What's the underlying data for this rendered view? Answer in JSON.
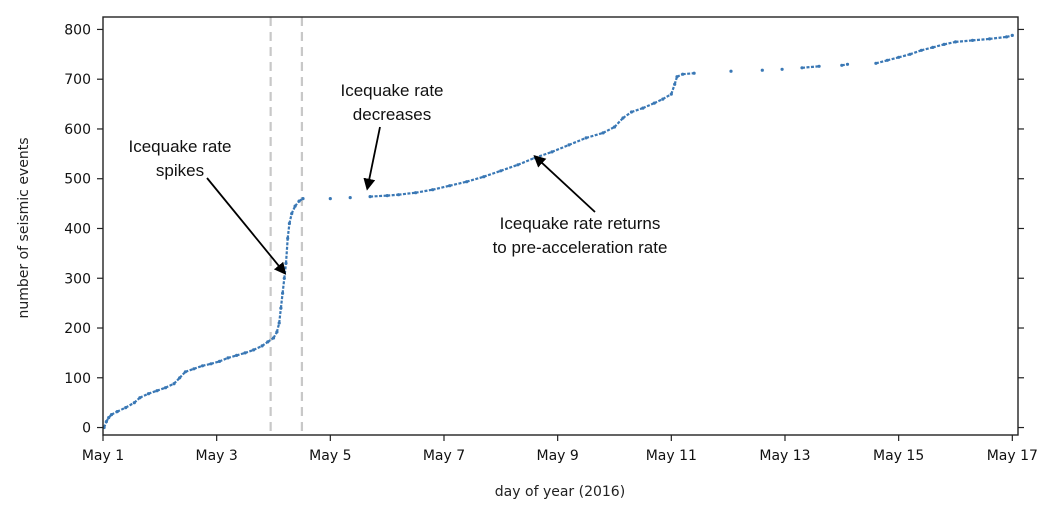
{
  "chart_data": {
    "type": "scatter",
    "xlabel": "day of year (2016)",
    "ylabel": "number of seismic events",
    "xlim": [
      1,
      17.1
    ],
    "ylim": [
      -15,
      825
    ],
    "x_ticks": [
      {
        "value": 1,
        "label": "May 1"
      },
      {
        "value": 3,
        "label": "May 3"
      },
      {
        "value": 5,
        "label": "May 5"
      },
      {
        "value": 7,
        "label": "May 7"
      },
      {
        "value": 9,
        "label": "May 9"
      },
      {
        "value": 11,
        "label": "May 11"
      },
      {
        "value": 13,
        "label": "May 13"
      },
      {
        "value": 15,
        "label": "May 15"
      },
      {
        "value": 17,
        "label": "May 17"
      }
    ],
    "y_ticks": [
      {
        "value": 0,
        "label": "0"
      },
      {
        "value": 100,
        "label": "100"
      },
      {
        "value": 200,
        "label": "200"
      },
      {
        "value": 300,
        "label": "300"
      },
      {
        "value": 400,
        "label": "400"
      },
      {
        "value": 500,
        "label": "500"
      },
      {
        "value": 600,
        "label": "600"
      },
      {
        "value": 700,
        "label": "700"
      },
      {
        "value": 800,
        "label": "800"
      }
    ],
    "grid": false,
    "series_color": "#3a78b5",
    "series": [
      {
        "points": [
          [
            1.02,
            0
          ],
          [
            1.06,
            12
          ],
          [
            1.1,
            20
          ],
          [
            1.15,
            26
          ],
          [
            1.25,
            32
          ],
          [
            1.4,
            40
          ],
          [
            1.55,
            50
          ],
          [
            1.65,
            60
          ],
          [
            1.8,
            68
          ],
          [
            1.95,
            74
          ],
          [
            2.1,
            80
          ],
          [
            2.25,
            88
          ],
          [
            2.35,
            100
          ],
          [
            2.45,
            112
          ],
          [
            2.6,
            118
          ],
          [
            2.75,
            124
          ],
          [
            2.9,
            128
          ],
          [
            3.05,
            133
          ],
          [
            3.2,
            140
          ],
          [
            3.35,
            145
          ],
          [
            3.5,
            150
          ],
          [
            3.65,
            156
          ],
          [
            3.8,
            164
          ],
          [
            3.9,
            172
          ],
          [
            4.0,
            180
          ],
          [
            4.06,
            192
          ],
          [
            4.1,
            210
          ],
          [
            4.13,
            240
          ],
          [
            4.16,
            270
          ],
          [
            4.19,
            300
          ],
          [
            4.22,
            330
          ],
          [
            4.25,
            380
          ],
          [
            4.28,
            410
          ],
          [
            4.32,
            430
          ],
          [
            4.38,
            445
          ],
          [
            4.45,
            455
          ],
          [
            4.52,
            460
          ],
          [
            5.0,
            460
          ],
          [
            5.35,
            462
          ],
          [
            5.7,
            464
          ],
          [
            6.0,
            466
          ],
          [
            6.2,
            468
          ],
          [
            6.5,
            472
          ],
          [
            6.8,
            478
          ],
          [
            7.1,
            486
          ],
          [
            7.4,
            494
          ],
          [
            7.7,
            504
          ],
          [
            8.0,
            516
          ],
          [
            8.3,
            528
          ],
          [
            8.6,
            542
          ],
          [
            8.9,
            554
          ],
          [
            9.2,
            568
          ],
          [
            9.5,
            582
          ],
          [
            9.8,
            592
          ],
          [
            10.0,
            604
          ],
          [
            10.15,
            622
          ],
          [
            10.3,
            634
          ],
          [
            10.5,
            642
          ],
          [
            10.7,
            652
          ],
          [
            10.85,
            660
          ],
          [
            11.0,
            670
          ],
          [
            11.06,
            690
          ],
          [
            11.1,
            705
          ],
          [
            11.2,
            710
          ],
          [
            11.4,
            712
          ],
          [
            12.05,
            716
          ],
          [
            12.6,
            718
          ],
          [
            12.95,
            720
          ],
          [
            13.3,
            723
          ],
          [
            13.6,
            726
          ],
          [
            14.0,
            728
          ],
          [
            14.1,
            730
          ],
          [
            14.6,
            732
          ],
          [
            14.8,
            738
          ],
          [
            15.0,
            744
          ],
          [
            15.2,
            750
          ],
          [
            15.4,
            758
          ],
          [
            15.6,
            764
          ],
          [
            15.8,
            770
          ],
          [
            16.0,
            775
          ],
          [
            16.3,
            778
          ],
          [
            16.6,
            781
          ],
          [
            16.9,
            785
          ],
          [
            17.0,
            788
          ]
        ]
      }
    ],
    "vertical_lines": [
      3.95,
      4.5
    ],
    "annotations": [
      {
        "lines": [
          "Icequake rate",
          "spikes"
        ],
        "arrow_to": [
          4.2,
          310
        ]
      },
      {
        "lines": [
          "Icequake rate",
          "decreases"
        ],
        "arrow_to": [
          5.65,
          480
        ]
      },
      {
        "lines": [
          "Icequake rate returns",
          "to pre-acceleration rate"
        ],
        "arrow_to": [
          8.6,
          545
        ]
      }
    ]
  }
}
